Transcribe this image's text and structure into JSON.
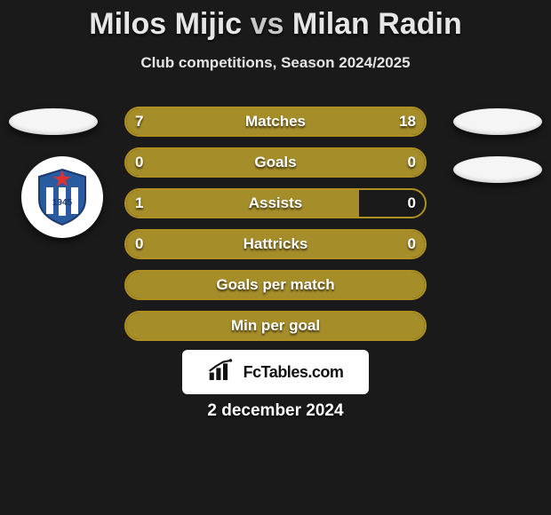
{
  "title": {
    "player1": "Milos Mijic",
    "vs": "vs",
    "player2": "Milan Radin"
  },
  "subtitle": "Club competitions, Season 2024/2025",
  "colors": {
    "bg": "#1a1a1a",
    "bar_fill": "#a58d2a",
    "bar_border": "#b09020",
    "text": "#ffffff"
  },
  "badge_left": {
    "shield_fill": "#2a5aa0",
    "shield_stroke": "#1a3a70",
    "stripe1": "#ffffff",
    "stripe2": "#2a5aa0",
    "star": "#e03030",
    "year": "1945"
  },
  "bars": [
    {
      "label": "Matches",
      "left_val": "7",
      "right_val": "18",
      "left_pct": 28,
      "right_pct": 72
    },
    {
      "label": "Goals",
      "left_val": "0",
      "right_val": "0",
      "left_pct": 0,
      "right_pct": 0,
      "full": true
    },
    {
      "label": "Assists",
      "left_val": "1",
      "right_val": "0",
      "left_pct": 78,
      "right_pct": 0
    },
    {
      "label": "Hattricks",
      "left_val": "0",
      "right_val": "0",
      "left_pct": 0,
      "right_pct": 0,
      "full": true
    },
    {
      "label": "Goals per match",
      "left_val": "",
      "right_val": "",
      "left_pct": 0,
      "right_pct": 0,
      "full": true
    },
    {
      "label": "Min per goal",
      "left_val": "",
      "right_val": "",
      "left_pct": 0,
      "right_pct": 0,
      "full": true
    }
  ],
  "logo": {
    "text": "FcTables.com"
  },
  "date": "2 december 2024"
}
